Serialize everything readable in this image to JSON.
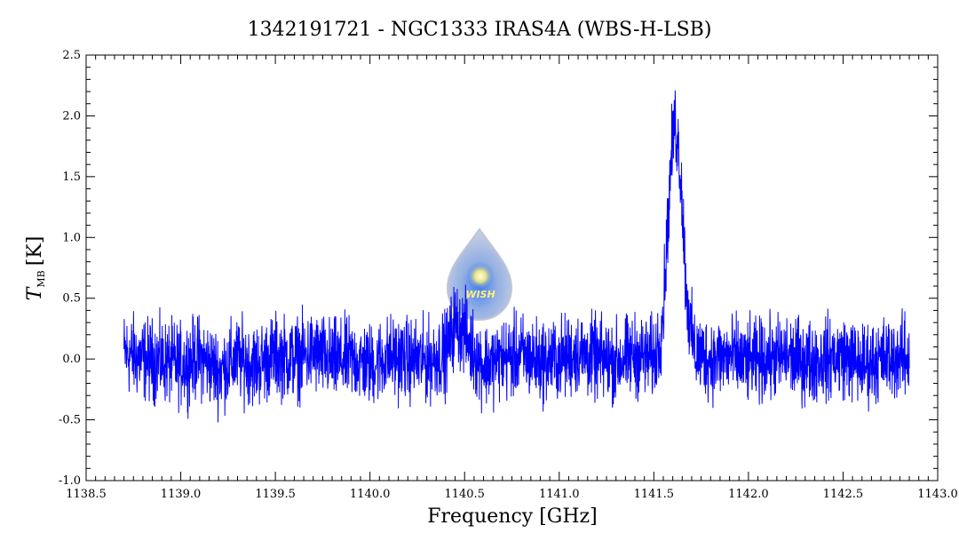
{
  "chart_data": {
    "type": "line",
    "title": "1342191721 - NGC1333 IRAS4A (WBS-H-LSB)",
    "xlabel": "Frequency [GHz]",
    "ylabel_symbol": "T",
    "ylabel_subscript": "MB",
    "ylabel_unit": "[K]",
    "xlim": [
      1138.5,
      1143.0
    ],
    "ylim": [
      -1.0,
      2.5
    ],
    "x_ticks": [
      1138.5,
      1139.0,
      1139.5,
      1140.0,
      1140.5,
      1141.0,
      1141.5,
      1142.0,
      1142.5,
      1143.0
    ],
    "x_tick_labels": [
      "1138.5",
      "1139.0",
      "1139.5",
      "1140.0",
      "1140.5",
      "1141.0",
      "1141.5",
      "1142.0",
      "1142.5",
      "1143.0"
    ],
    "y_ticks": [
      -1.0,
      -0.5,
      0.0,
      0.5,
      1.0,
      1.5,
      2.0,
      2.5
    ],
    "y_tick_labels": [
      "-1.0",
      "-0.5",
      "0.0",
      "0.5",
      "1.0",
      "1.5",
      "2.0",
      "2.5"
    ],
    "grid": false,
    "series": [
      {
        "color": "#0000ff",
        "x": [
          1138.7,
          1138.8,
          1138.9,
          1139.0,
          1139.1,
          1139.2,
          1139.3,
          1139.4,
          1139.5,
          1139.6,
          1139.7,
          1139.8,
          1139.9,
          1140.0,
          1140.1,
          1140.2,
          1140.3,
          1140.4,
          1140.45,
          1140.5,
          1140.55,
          1140.6,
          1140.7,
          1140.8,
          1140.9,
          1141.0,
          1141.1,
          1141.2,
          1141.3,
          1141.4,
          1141.5,
          1141.53,
          1141.55,
          1141.57,
          1141.59,
          1141.61,
          1141.63,
          1141.65,
          1141.67,
          1141.69,
          1141.72,
          1141.8,
          1141.9,
          1142.0,
          1142.1,
          1142.2,
          1142.3,
          1142.4,
          1142.5,
          1142.6,
          1142.7,
          1142.8,
          1142.85
        ],
        "y": [
          0.05,
          0.0,
          -0.02,
          -0.05,
          0.02,
          -0.1,
          0.0,
          -0.05,
          0.03,
          0.0,
          0.05,
          -0.02,
          0.0,
          -0.05,
          0.02,
          0.0,
          -0.02,
          0.05,
          0.3,
          0.22,
          0.05,
          -0.05,
          0.0,
          0.03,
          -0.02,
          0.0,
          0.05,
          0.0,
          -0.02,
          0.03,
          0.0,
          0.15,
          0.4,
          1.0,
          1.6,
          1.95,
          1.75,
          1.3,
          0.6,
          0.25,
          0.05,
          0.0,
          0.02,
          -0.03,
          0.0,
          0.02,
          -0.02,
          0.0,
          0.03,
          -0.05,
          0.0,
          0.02,
          0.0
        ]
      }
    ],
    "logo_text": "WISH"
  }
}
